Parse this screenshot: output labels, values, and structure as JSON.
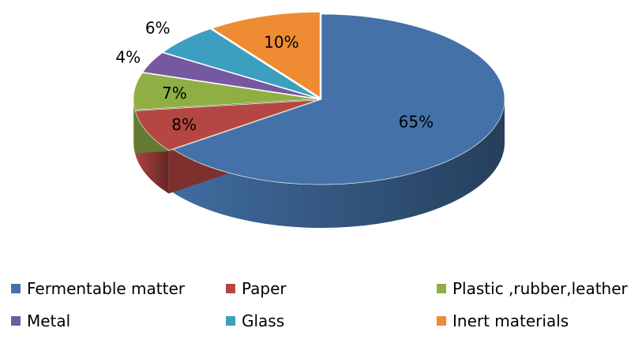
{
  "chart_data": {
    "type": "pie",
    "style": "3d-exploded-tilt",
    "title": "",
    "categories": [
      "Fermentable matter",
      "Paper",
      "Plastic ,rubber,leather",
      "Metal",
      "Glass",
      "Inert materials"
    ],
    "values": [
      65,
      8,
      7,
      4,
      6,
      10
    ],
    "labels": [
      "65%",
      "8%",
      "7%",
      "4%",
      "6%",
      "10%"
    ],
    "colors": [
      "#4472A8",
      "#B54643",
      "#8FAF45",
      "#7558A0",
      "#3D9FBF",
      "#EE8B33"
    ],
    "legend_position": "bottom"
  }
}
